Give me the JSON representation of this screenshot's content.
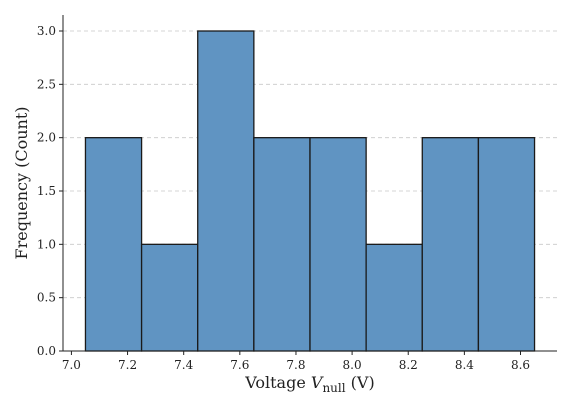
{
  "chart_data": {
    "type": "histogram",
    "bins": [
      7.05,
      7.25,
      7.45,
      7.65,
      7.85,
      8.05,
      8.25,
      8.45,
      8.65
    ],
    "values": [
      2,
      1,
      3,
      2,
      2,
      1,
      2,
      2
    ],
    "color": "#6094c2",
    "edgecolor": "#1a1a1a",
    "xlabel": [
      "Voltage",
      "V",
      "null",
      "(V)"
    ],
    "ylabel": "Frequency (Count)",
    "xlim": [
      6.97,
      8.73
    ],
    "xticks": [
      {
        "value": 7,
        "label": "7.0"
      },
      7.2,
      7.4,
      7.6,
      7.8,
      {
        "value": 8,
        "label": "8.0"
      },
      8.2,
      8.4,
      8.6
    ],
    "ylim": [
      0,
      3.15
    ],
    "yticks": [
      {
        "value": 0,
        "label": "0.0"
      },
      0.5,
      {
        "value": 1,
        "label": "1.0"
      },
      1.5,
      {
        "value": 2,
        "label": "2.0"
      },
      2.5,
      {
        "value": 3,
        "label": "3.0"
      }
    ],
    "grid": true
  }
}
